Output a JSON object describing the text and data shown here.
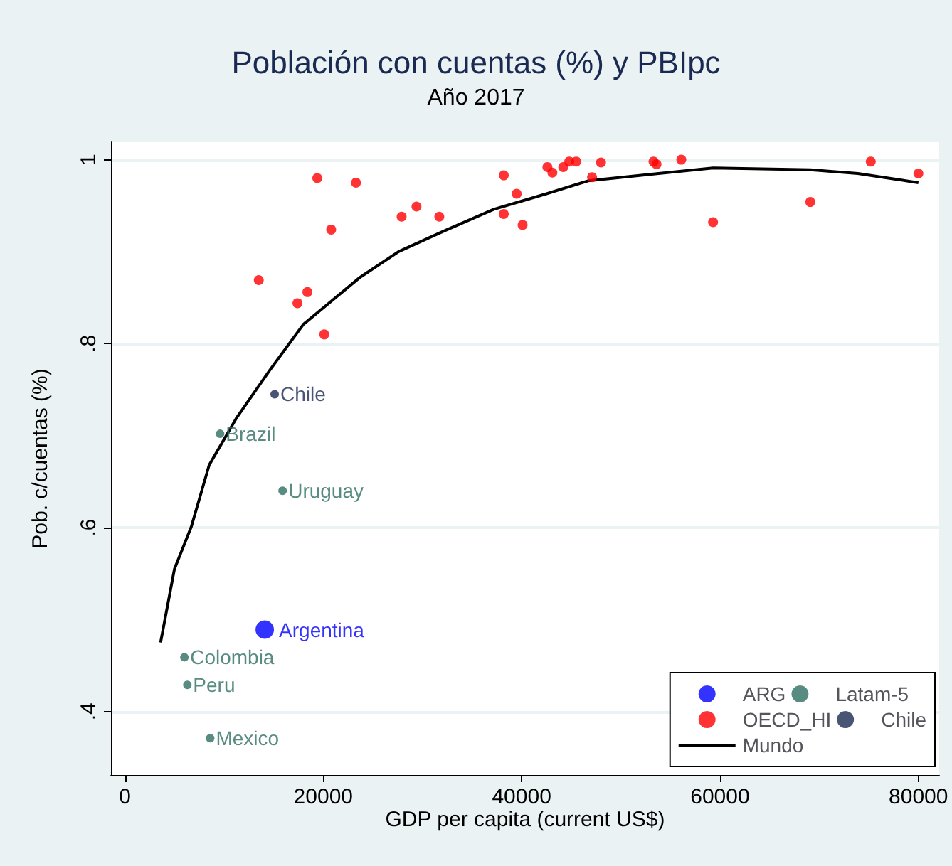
{
  "chart_data": {
    "type": "scatter",
    "title": "Población con cuentas (%) y PBIpc",
    "subtitle": "Año 2017",
    "xlabel": "GDP per capita (current US$)",
    "ylabel": "Pob. c/cuentas (%)",
    "xlim": [
      -1400,
      82100
    ],
    "xticks": [
      0,
      20000,
      40000,
      60000,
      80000
    ],
    "ylim": [
      0.331,
      1.019
    ],
    "yticks": [
      {
        "value": 0.4,
        "label": ".4"
      },
      {
        "value": 0.6,
        "label": ".6"
      },
      {
        "value": 0.8,
        "label": ".8"
      },
      {
        "value": 1,
        "label": "1"
      }
    ],
    "grid": "y",
    "legend": "bottom right",
    "marker": "circle",
    "series": [
      {
        "name": "ARG",
        "color": "#0000ff",
        "x": [
          14100
        ],
        "values": [
          0.489
        ]
      },
      {
        "name": "Latam-5",
        "color": "#2e6e62",
        "x": [
          9600,
          15900,
          6000,
          6300,
          8600
        ],
        "values": [
          0.702,
          0.64,
          0.459,
          0.429,
          0.371
        ]
      },
      {
        "name": "OECD_HI",
        "color": "#ff0000",
        "x": [
          13500,
          17400,
          18400,
          19400,
          23300,
          20800,
          20100,
          27900,
          29400,
          31700,
          38200,
          39500,
          38200,
          40100,
          42600,
          43100,
          44200,
          44800,
          45500,
          47100,
          48000,
          53300,
          53600,
          56100,
          59300,
          69100,
          75200,
          80000
        ],
        "values": [
          0.869,
          0.844,
          0.856,
          0.98,
          0.975,
          0.924,
          0.81,
          0.938,
          0.949,
          0.938,
          0.983,
          0.963,
          0.941,
          0.929,
          0.992,
          0.986,
          0.992,
          0.998,
          0.998,
          0.981,
          0.997,
          0.998,
          0.995,
          1.0,
          0.932,
          0.954,
          0.998,
          0.985
        ]
      },
      {
        "name": "Chile",
        "color": "#1a2a52",
        "x": [
          15100
        ],
        "values": [
          0.745
        ]
      },
      {
        "name": "Mundo",
        "type": "line",
        "color": "#000000",
        "marker": "none",
        "x": [
          3600,
          5000,
          6700,
          8500,
          11300,
          14600,
          18000,
          20800,
          23700,
          27600,
          32300,
          37200,
          41900,
          46700,
          53800,
          59300,
          69100,
          73900,
          80000
        ],
        "values": [
          0.475,
          0.555,
          0.601,
          0.668,
          0.72,
          0.771,
          0.821,
          0.846,
          0.872,
          0.9,
          0.923,
          0.946,
          0.961,
          0.977,
          0.985,
          0.991,
          0.989,
          0.985,
          0.975
        ]
      }
    ],
    "annotations": [
      {
        "text": "Chile",
        "x": 15100,
        "y": 0.745
      },
      {
        "text": "Brazil",
        "x": 9600,
        "y": 0.702
      },
      {
        "text": "Uruguay",
        "x": 15900,
        "y": 0.64
      },
      {
        "text": "Argentina",
        "x": 14100,
        "y": 0.489
      },
      {
        "text": "Colombia",
        "x": 6000,
        "y": 0.459
      },
      {
        "text": "Peru",
        "x": 6300,
        "y": 0.429
      },
      {
        "text": "Mexico",
        "x": 8600,
        "y": 0.371
      }
    ]
  }
}
